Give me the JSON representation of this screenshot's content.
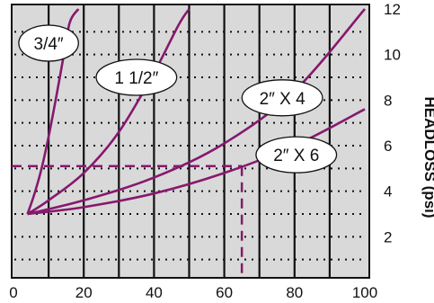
{
  "chart_data": {
    "type": "line",
    "xlabel": "",
    "ylabel": "HEADLOSS (psi)",
    "xlim": [
      0,
      100
    ],
    "ylim": [
      0,
      12
    ],
    "xticks": [
      0,
      20,
      40,
      60,
      80,
      100
    ],
    "yticks": [
      2,
      4,
      6,
      8,
      10,
      12
    ],
    "grid": true,
    "series": [
      {
        "name": "3/4″",
        "x": [
          4,
          6,
          8,
          10,
          12,
          14,
          16,
          18.5
        ],
        "y": [
          3.0,
          3.9,
          5.0,
          6.4,
          8.0,
          9.7,
          11.4,
          12.0
        ],
        "label_at": [
          10,
          10.5
        ]
      },
      {
        "name": "1 1/2″",
        "x": [
          4,
          10,
          20,
          30,
          40,
          47,
          50
        ],
        "y": [
          3.0,
          3.6,
          4.8,
          6.6,
          9.2,
          11.3,
          12.0
        ],
        "label_at": [
          35,
          9.0
        ]
      },
      {
        "name": "2″ X 4",
        "x": [
          4,
          20,
          40,
          60,
          80,
          100
        ],
        "y": [
          3.0,
          3.6,
          4.6,
          6.1,
          8.4,
          12.0
        ],
        "label_at": [
          76.5,
          8.1
        ]
      },
      {
        "name": "2″ X 6",
        "x": [
          4,
          20,
          40,
          60,
          80,
          100
        ],
        "y": [
          3.0,
          3.3,
          3.9,
          4.8,
          6.0,
          7.6
        ],
        "label_at": [
          80.5,
          5.6
        ]
      }
    ],
    "reference": {
      "x": 65,
      "y": 5.1
    }
  },
  "colors": {
    "curve": "#86196e",
    "grid": "#111111",
    "background": "#d9d9d9"
  }
}
